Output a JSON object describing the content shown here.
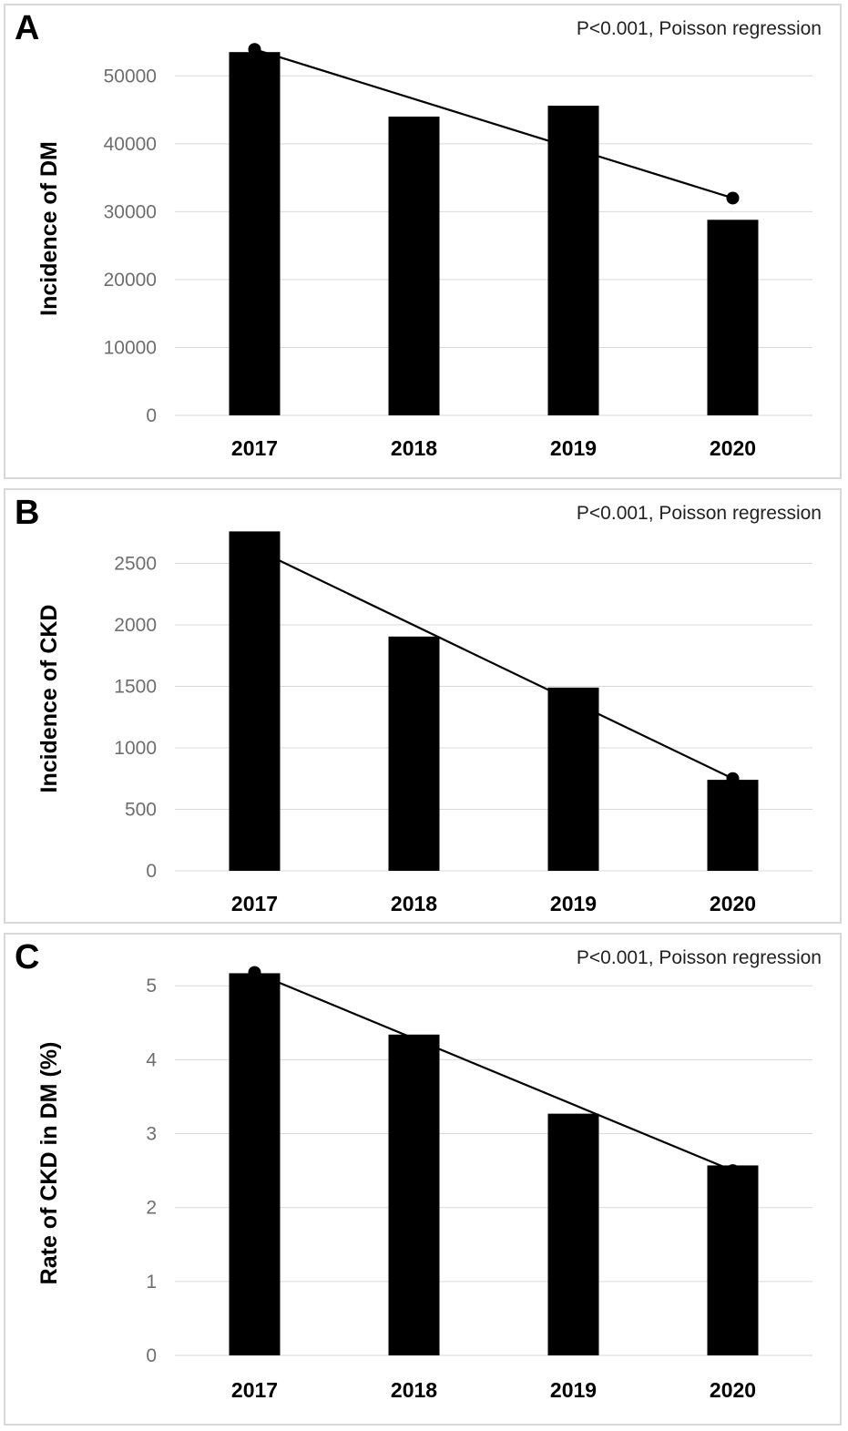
{
  "chart_data": [
    {
      "id": "a",
      "type": "bar",
      "panel_label": "A",
      "annotation": "P<0.001, Poisson regression",
      "ylabel": "Incidence of DM",
      "categories": [
        "2017",
        "2018",
        "2019",
        "2020"
      ],
      "values": [
        53500,
        44000,
        45600,
        28800
      ],
      "trend_line": [
        53900,
        32000
      ],
      "ylim": [
        0,
        55000
      ],
      "yticks": [
        0,
        10000,
        20000,
        30000,
        40000,
        50000
      ],
      "grid": true,
      "bar_color": "#000000"
    },
    {
      "id": "b",
      "type": "bar",
      "panel_label": "B",
      "annotation": "P<0.001, Poisson regression",
      "ylabel": "Incidence of CKD",
      "categories": [
        "2017",
        "2018",
        "2019",
        "2020"
      ],
      "values": [
        2760,
        1905,
        1490,
        740
      ],
      "trend_line": [
        2620,
        750
      ],
      "ylim": [
        0,
        2800
      ],
      "yticks": [
        0,
        500,
        1000,
        1500,
        2000,
        2500
      ],
      "grid": true,
      "bar_color": "#000000"
    },
    {
      "id": "c",
      "type": "bar",
      "panel_label": "C",
      "annotation": "P<0.001, Poisson regression",
      "ylabel": "Rate of CKD in DM (%)",
      "categories": [
        "2017",
        "2018",
        "2019",
        "2020"
      ],
      "values": [
        5.17,
        4.34,
        3.27,
        2.57
      ],
      "trend_line": [
        5.18,
        2.5
      ],
      "ylim": [
        0,
        5.2
      ],
      "yticks": [
        0,
        1,
        2,
        3,
        4,
        5
      ],
      "grid": true,
      "bar_color": "#000000"
    }
  ]
}
